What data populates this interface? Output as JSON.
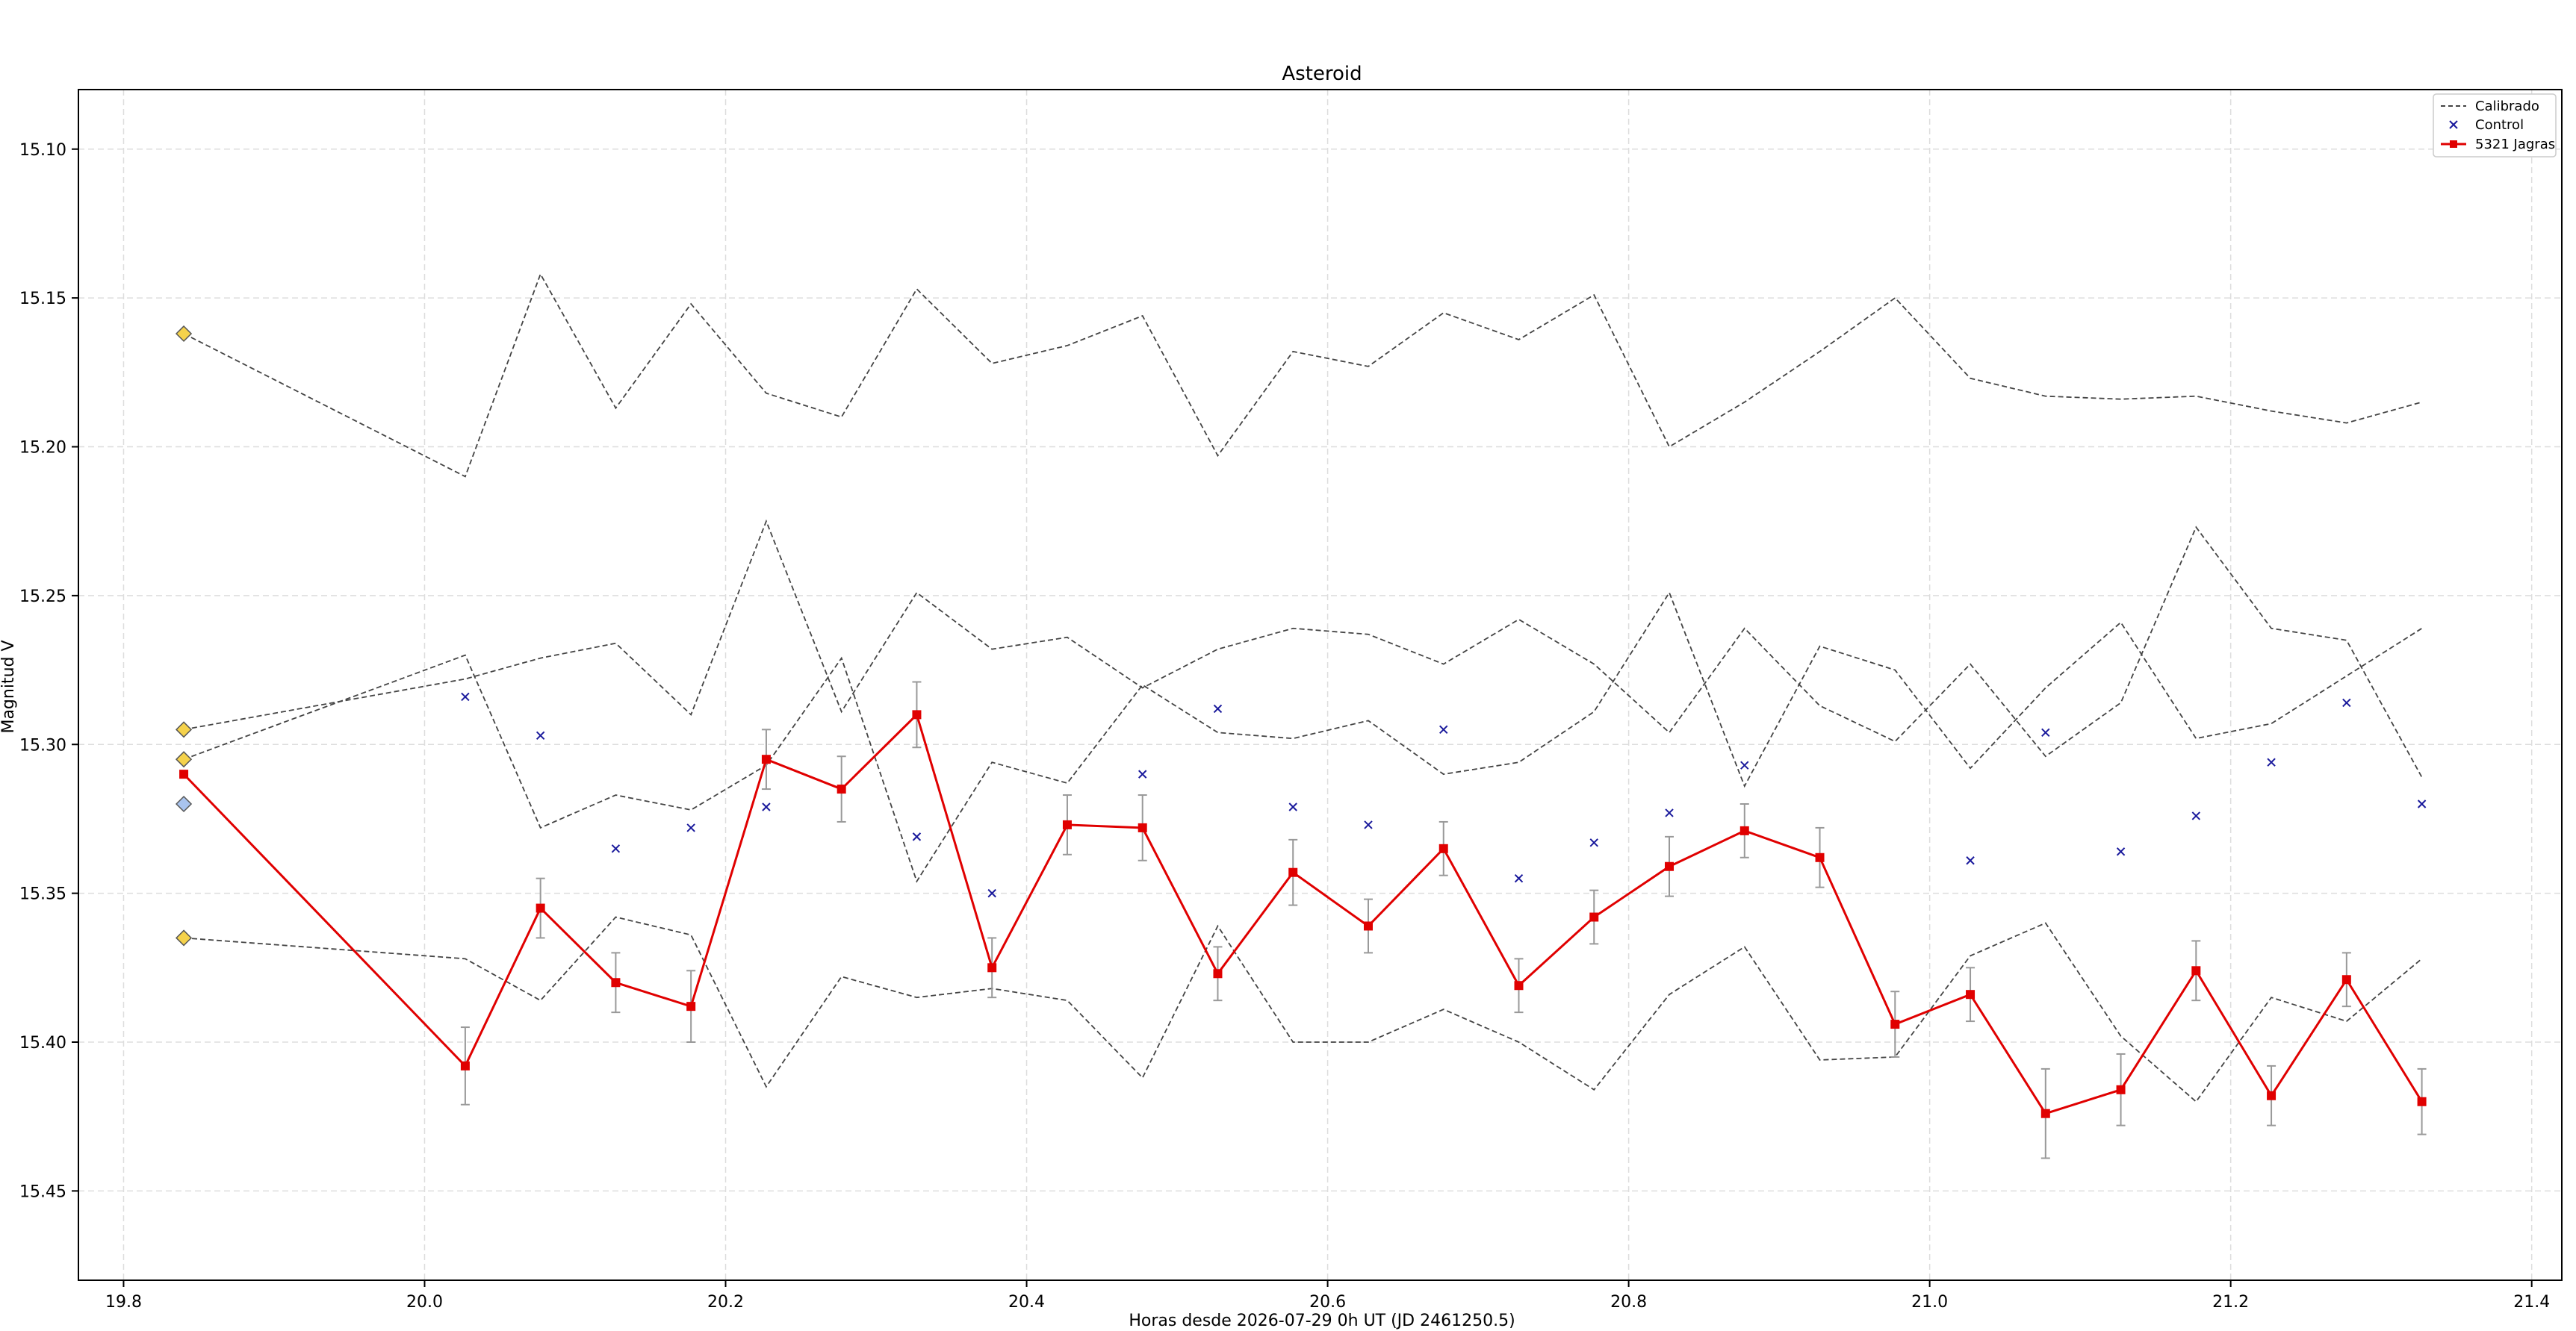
{
  "chart_data": {
    "type": "line",
    "title": "Asteroid",
    "xlabel": "Horas desde 2026-07-29 0h UT (JD 2461250.5)",
    "ylabel": "Magnitud V",
    "xlim": [
      19.77,
      21.42
    ],
    "ylim": [
      15.08,
      15.48
    ],
    "y_inverted": true,
    "grid": true,
    "legend_position": "top-right",
    "x_ticks": [
      "19.8",
      "20.0",
      "20.2",
      "20.4",
      "20.6",
      "20.8",
      "21.0",
      "21.2",
      "21.4"
    ],
    "y_ticks": [
      "15.10",
      "15.15",
      "15.20",
      "15.25",
      "15.30",
      "15.35",
      "15.40",
      "15.45"
    ],
    "legend": [
      {
        "label": "Calibrado",
        "style": "dashed"
      },
      {
        "label": "Control",
        "style": "x-marker"
      },
      {
        "label": "5321 Jagras",
        "style": "red-square-line"
      }
    ],
    "x": [
      20.027,
      20.077,
      20.127,
      20.177,
      20.227,
      20.277,
      20.327,
      20.377,
      20.427,
      20.477,
      20.527,
      20.577,
      20.627,
      20.677,
      20.727,
      20.777,
      20.827,
      20.877,
      20.927,
      20.977,
      21.027,
      21.077,
      21.127,
      21.177,
      21.227,
      21.277,
      21.327
    ],
    "calibrated_series": [
      {
        "start": 15.162,
        "values": [
          15.21,
          15.142,
          15.187,
          15.152,
          15.182,
          15.19,
          15.147,
          15.172,
          15.166,
          15.156,
          15.203,
          15.168,
          15.173,
          15.155,
          15.164,
          15.149,
          15.2,
          15.185,
          15.168,
          15.15,
          15.177,
          15.183,
          15.184,
          15.183,
          15.188,
          15.192,
          15.185
        ]
      },
      {
        "start": 15.295,
        "values": [
          15.278,
          15.271,
          15.266,
          15.29,
          15.225,
          15.289,
          15.249,
          15.268,
          15.264,
          15.281,
          15.268,
          15.261,
          15.263,
          15.273,
          15.258,
          15.273,
          15.296,
          15.261,
          15.287,
          15.299,
          15.273,
          15.304,
          15.286,
          15.227,
          15.261,
          15.265,
          15.311
        ]
      },
      {
        "start": 15.305,
        "values": [
          15.27,
          15.328,
          15.317,
          15.322,
          15.307,
          15.271,
          15.346,
          15.306,
          15.313,
          15.28,
          15.296,
          15.298,
          15.292,
          15.31,
          15.306,
          15.289,
          15.249,
          15.314,
          15.267,
          15.275,
          15.308,
          15.281,
          15.259,
          15.298,
          15.293,
          15.277,
          15.261
        ]
      },
      {
        "start": 15.365,
        "values": [
          15.372,
          15.386,
          15.358,
          15.364,
          15.415,
          15.378,
          15.385,
          15.382,
          15.386,
          15.412,
          15.361,
          15.4,
          15.4,
          15.389,
          15.4,
          15.416,
          15.384,
          15.368,
          15.406,
          15.405,
          15.371,
          15.36,
          15.398,
          15.42,
          15.385,
          15.393,
          15.372
        ]
      }
    ],
    "control_points": {
      "start": 15.32,
      "values": [
        15.284,
        15.297,
        15.335,
        15.328,
        15.321,
        null,
        15.331,
        15.35,
        null,
        15.31,
        15.288,
        15.321,
        15.327,
        15.295,
        15.345,
        15.333,
        15.323,
        15.307,
        null,
        null,
        15.339,
        15.296,
        15.336,
        15.324,
        15.306,
        15.286,
        15.32
      ]
    },
    "series": [
      {
        "name": "5321 Jagras",
        "start": 15.31,
        "values": [
          15.408,
          15.355,
          15.38,
          15.388,
          15.305,
          15.315,
          15.29,
          15.375,
          15.327,
          15.328,
          15.377,
          15.343,
          15.361,
          15.335,
          15.381,
          15.358,
          15.341,
          15.329,
          15.338,
          15.394,
          15.384,
          15.424,
          15.416,
          15.376,
          15.418,
          15.379,
          15.42
        ],
        "errors": [
          0.013,
          0.01,
          0.01,
          0.012,
          0.01,
          0.011,
          0.011,
          0.01,
          0.01,
          0.011,
          0.009,
          0.011,
          0.009,
          0.009,
          0.009,
          0.009,
          0.01,
          0.009,
          0.01,
          0.011,
          0.009,
          0.015,
          0.012,
          0.01,
          0.01,
          0.009,
          0.011
        ]
      }
    ],
    "start_x": 19.84,
    "start_markers": [
      {
        "value": 15.162,
        "color": "#f5d24b"
      },
      {
        "value": 15.295,
        "color": "#f5d24b"
      },
      {
        "value": 15.305,
        "color": "#f5d24b"
      },
      {
        "value": 15.32,
        "color": "#a9c4ef"
      },
      {
        "value": 15.365,
        "color": "#f5d24b"
      }
    ],
    "colors": {
      "calibrated": "#444444",
      "control": "#1a1a9c",
      "target": "#e00000",
      "error_bar": "#999999",
      "grid": "#dddddd"
    }
  }
}
